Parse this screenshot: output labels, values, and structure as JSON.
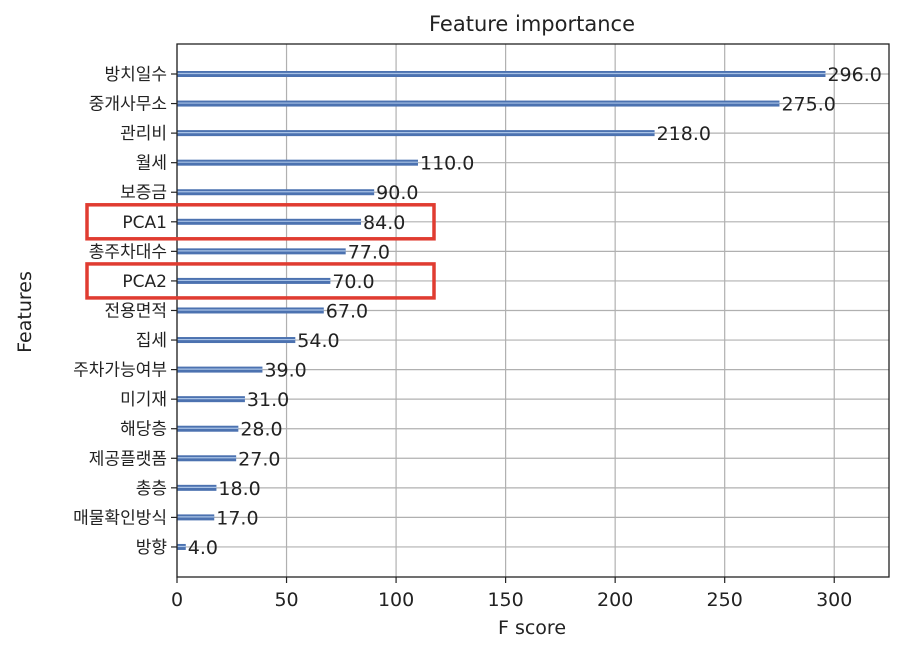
{
  "chart_data": {
    "type": "bar",
    "orientation": "horizontal",
    "title": "Feature importance",
    "xlabel": "F score",
    "ylabel": "Features",
    "xlim": [
      0,
      325
    ],
    "xticks": [
      0,
      50,
      100,
      150,
      200,
      250,
      300
    ],
    "grid": true,
    "categories": [
      "방치일수",
      "중개사무소",
      "관리비",
      "월세",
      "보증금",
      "PCA1",
      "총주차대수",
      "PCA2",
      "전용면적",
      "집세",
      "주차가능여부",
      "미기재",
      "해당층",
      "제공플랫폼",
      "총층",
      "매물확인방식",
      "방향"
    ],
    "values": [
      296.0,
      275.0,
      218.0,
      110.0,
      90.0,
      84.0,
      77.0,
      70.0,
      67.0,
      54.0,
      39.0,
      31.0,
      28.0,
      27.0,
      18.0,
      17.0,
      4.0
    ],
    "value_labels": [
      "296.0",
      "275.0",
      "218.0",
      "110.0",
      "90.0",
      "84.0",
      "77.0",
      "70.0",
      "67.0",
      "54.0",
      "39.0",
      "31.0",
      "28.0",
      "27.0",
      "18.0",
      "17.0",
      "4.0"
    ],
    "highlighted_categories": [
      "PCA1",
      "PCA2"
    ],
    "bar_color": "#4c72b0",
    "highlight_color": "#e03c31",
    "grid_color": "#b0b0b0"
  }
}
